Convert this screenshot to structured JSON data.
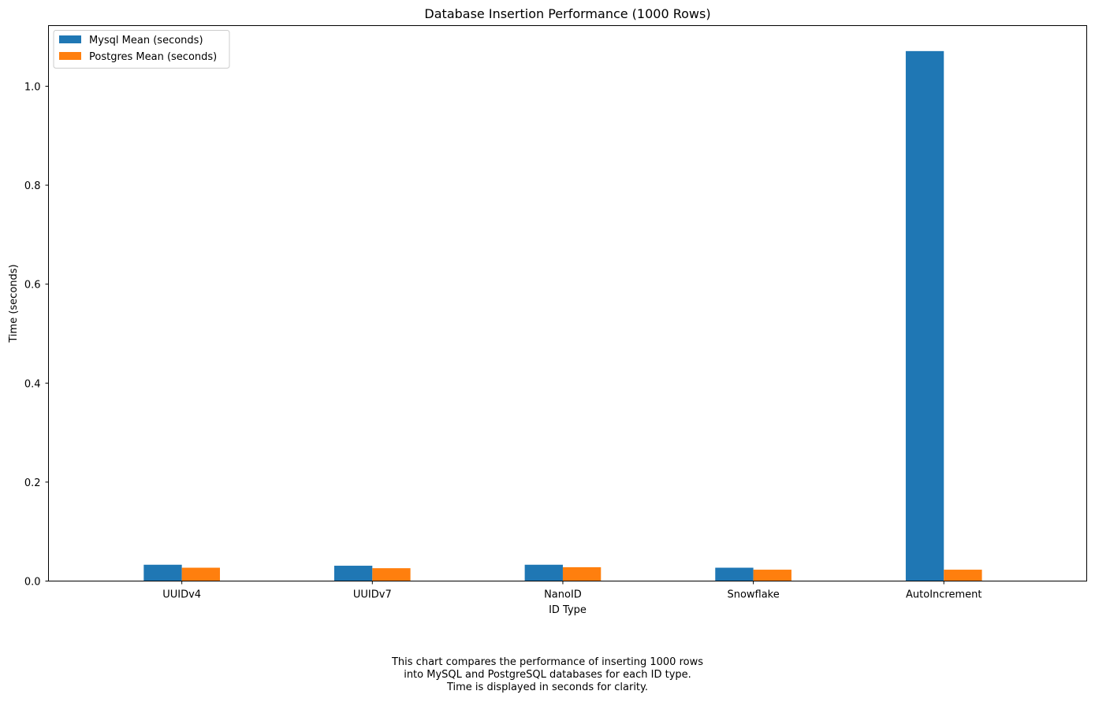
{
  "chart_data": {
    "type": "bar",
    "title": "Database Insertion Performance (1000 Rows)",
    "xlabel": "ID Type",
    "ylabel": "Time (seconds)",
    "categories": [
      "UUIDv4",
      "UUIDv7",
      "NanoID",
      "Snowflake",
      "AutoIncrement"
    ],
    "series": [
      {
        "name": "Mysql Mean (seconds)",
        "color": "#1f77b4",
        "values": [
          0.033,
          0.031,
          0.033,
          0.027,
          1.071
        ]
      },
      {
        "name": "Postgres Mean (seconds)",
        "color": "#ff7f0e",
        "values": [
          0.027,
          0.026,
          0.028,
          0.023,
          0.023
        ]
      }
    ],
    "ylim": [
      0,
      1.1225
    ],
    "yticks": [
      "0.0",
      "0.2",
      "0.4",
      "0.6",
      "0.8",
      "1.0"
    ],
    "grid": false,
    "legend_position": "top-left"
  },
  "caption": {
    "lines": [
      "This chart compares the performance of inserting 1000 rows",
      "into MySQL and PostgreSQL databases for each ID type.",
      "Time is displayed in seconds for clarity."
    ]
  }
}
